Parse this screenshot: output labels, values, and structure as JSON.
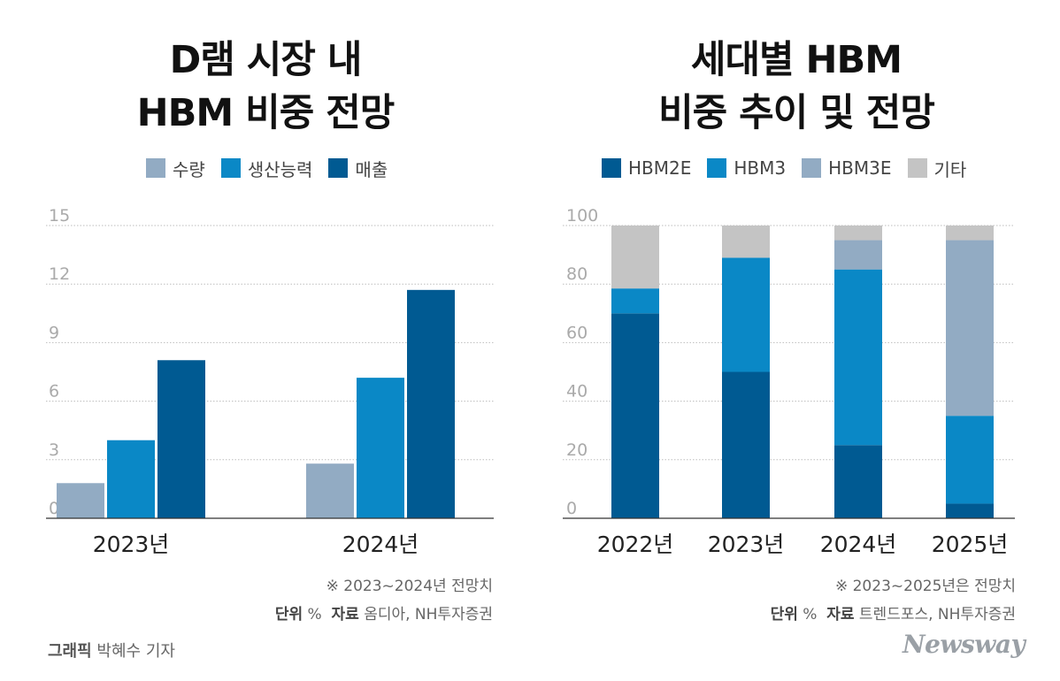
{
  "left": {
    "title_line1": "D램 시장 내",
    "title_line2": "HBM 비중 전망",
    "note": "※ 2023~2024년 전망치",
    "source_label": "단위",
    "unit": "%",
    "source_key": "자료",
    "source": "옴디아, NH투자증권"
  },
  "right": {
    "title_line1": "세대별 HBM",
    "title_line2": "비중 추이 및 전망",
    "note": "※ 2023~2025년은 전망치",
    "source_label": "단위",
    "unit": "%",
    "source_key": "자료",
    "source": "트렌드포스, NH투자증권"
  },
  "credit": {
    "label": "그래픽",
    "name": "박혜수 기자"
  },
  "logo": "Newsway",
  "chart_data": [
    {
      "type": "bar",
      "categories": [
        "2023년",
        "2024년"
      ],
      "series": [
        {
          "name": "수량",
          "color": "#92abc3",
          "values": [
            1.8,
            2.8
          ]
        },
        {
          "name": "생산능력",
          "color": "#0a88c6",
          "values": [
            4.0,
            7.2
          ]
        },
        {
          "name": "매출",
          "color": "#005a92",
          "values": [
            8.1,
            11.7
          ]
        }
      ],
      "yticks": [
        0,
        3,
        6,
        9,
        12,
        15
      ],
      "ylim": [
        0,
        15
      ],
      "grid": true,
      "legend": "top"
    },
    {
      "type": "bar",
      "stacked": true,
      "categories": [
        "2022년",
        "2023년",
        "2024년",
        "2025년"
      ],
      "series": [
        {
          "name": "HBM2E",
          "color": "#005a92",
          "values": [
            70,
            50,
            25,
            5
          ]
        },
        {
          "name": "HBM3",
          "color": "#0a88c6",
          "values": [
            8.5,
            39,
            60,
            30
          ]
        },
        {
          "name": "HBM3E",
          "color": "#92abc3",
          "values": [
            0,
            0,
            10,
            60
          ]
        },
        {
          "name": "기타",
          "color": "#c4c4c4",
          "values": [
            21.5,
            11,
            5,
            5
          ]
        }
      ],
      "yticks": [
        0,
        20,
        40,
        60,
        80,
        100
      ],
      "ylim": [
        0,
        100
      ],
      "grid": true,
      "legend": "top"
    }
  ]
}
